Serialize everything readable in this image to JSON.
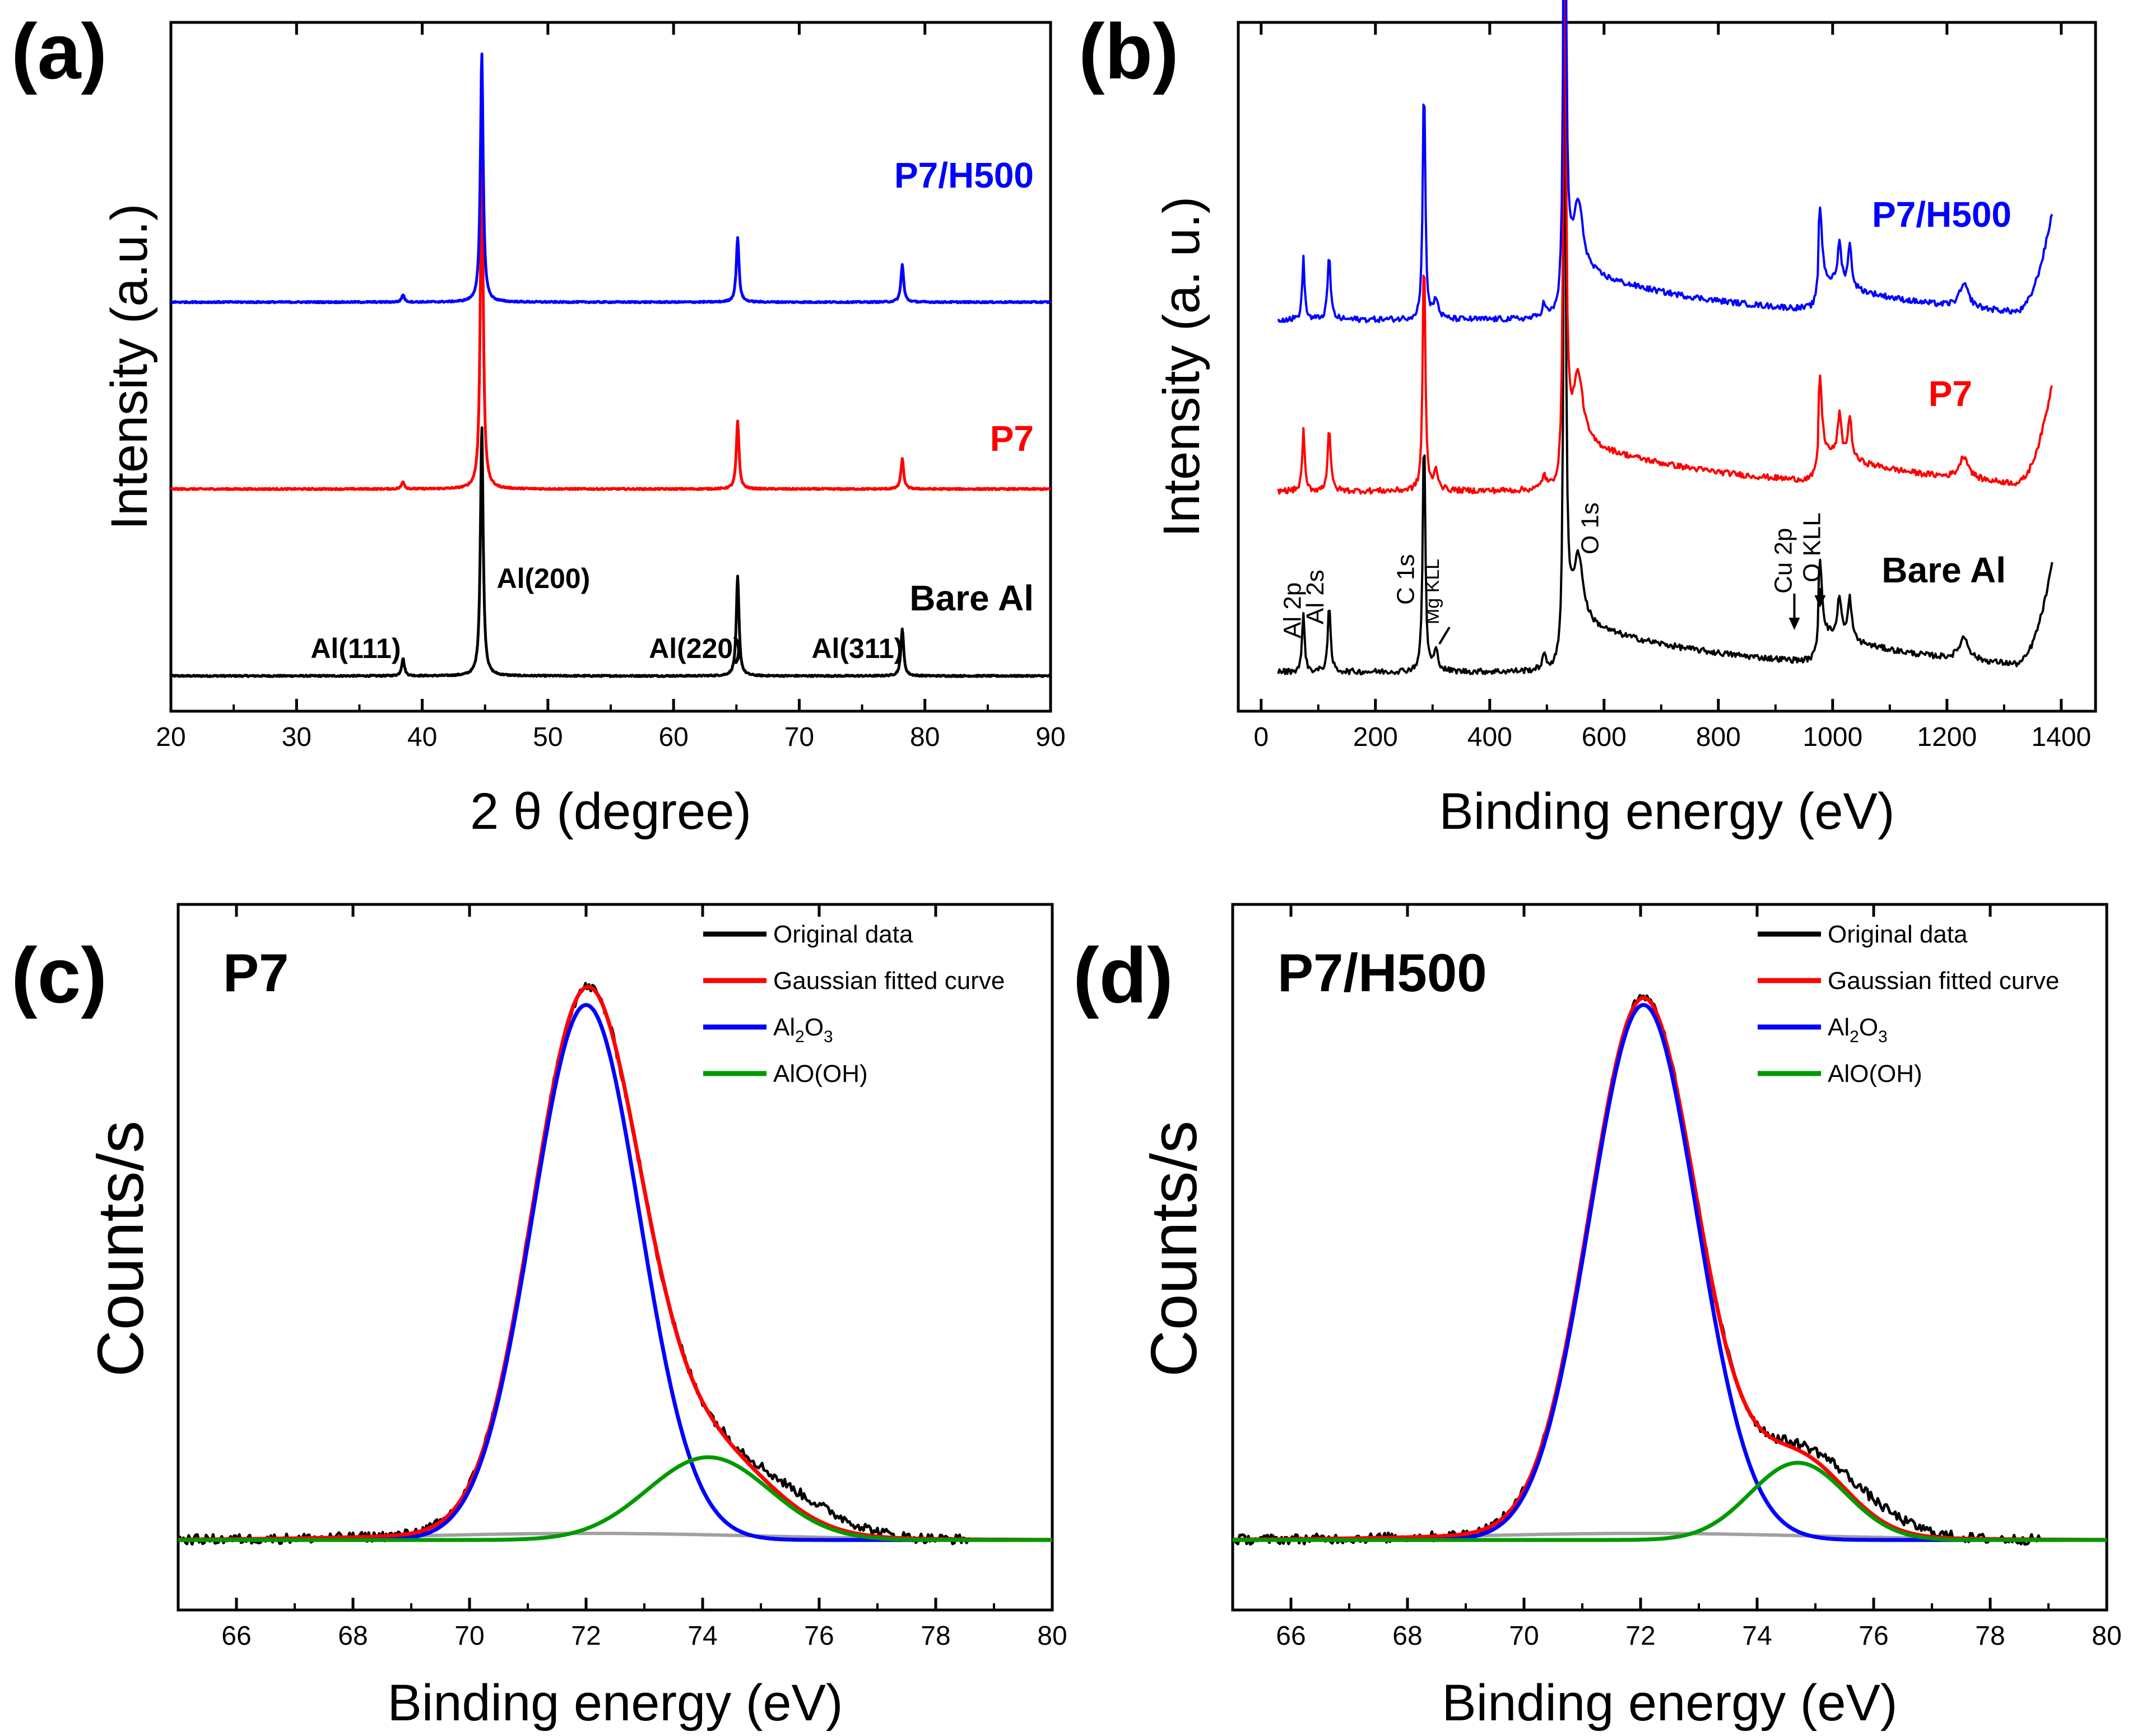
{
  "chart_data": [
    {
      "panel": "(a)",
      "type": "line",
      "xlabel_prefix": "2",
      "xlabel_symbol": "θ",
      "xlabel_suffix": "(degree)",
      "ylabel": "Intensity (a.u.)",
      "xlim": [
        20,
        90
      ],
      "xticks": [
        20,
        30,
        40,
        50,
        60,
        70,
        80,
        90
      ],
      "series": [
        {
          "name": "Bare Al",
          "color": "#000000",
          "baseline": 0.0,
          "peaks": [
            {
              "x": 38.47,
              "h": 0.07
            },
            {
              "x": 44.74,
              "h": 1.0
            },
            {
              "x": 65.1,
              "h": 0.4
            },
            {
              "x": 78.2,
              "h": 0.19
            }
          ]
        },
        {
          "name": "P7",
          "color": "#ff0000",
          "baseline": 0.75,
          "peaks": [
            {
              "x": 38.47,
              "h": 0.03
            },
            {
              "x": 44.74,
              "h": 1.4
            },
            {
              "x": 65.1,
              "h": 0.27
            },
            {
              "x": 78.2,
              "h": 0.12
            }
          ]
        },
        {
          "name": "P7/H500",
          "color": "#0000ff",
          "baseline": 1.5,
          "peaks": [
            {
              "x": 38.47,
              "h": 0.03
            },
            {
              "x": 44.74,
              "h": 1.0
            },
            {
              "x": 65.1,
              "h": 0.26
            },
            {
              "x": 78.2,
              "h": 0.15
            }
          ]
        }
      ],
      "peak_labels": [
        {
          "text": "Al(111)",
          "x": 38.5
        },
        {
          "text": "Al(200)",
          "x": 44.74
        },
        {
          "text": "Al(220)",
          "x": 65.1
        },
        {
          "text": "Al(311)",
          "x": 78.2
        }
      ]
    },
    {
      "panel": "(b)",
      "type": "line",
      "xlabel": "Binding energy (eV)",
      "ylabel": "Intensity (a. u.)",
      "xlim": [
        -40,
        1460
      ],
      "xticks": [
        0,
        200,
        400,
        600,
        800,
        1000,
        1200,
        1400
      ],
      "series": [
        {
          "name": "Bare Al",
          "color": "#000000",
          "baseline": 0.0
        },
        {
          "name": "P7",
          "color": "#ff0000",
          "baseline": 0.95
        },
        {
          "name": "P7/H500",
          "color": "#0000ff",
          "baseline": 1.85
        }
      ],
      "peaks": [
        {
          "name": "Al 2p",
          "x": 74
        },
        {
          "name": "Al 2s",
          "x": 119
        },
        {
          "name": "C 1s",
          "x": 285
        },
        {
          "name": "Mg KLL",
          "x": 306
        },
        {
          "name": "O 1s",
          "x": 531
        },
        {
          "name": "Cu 2p",
          "x": 933
        },
        {
          "name": "O KLL",
          "x": 978
        }
      ]
    },
    {
      "panel": "(c)",
      "title": "P7",
      "type": "line",
      "xlabel": "Binding energy (eV)",
      "ylabel": "Counts/s",
      "xlim": [
        65,
        80
      ],
      "xticks": [
        66,
        68,
        70,
        72,
        74,
        76,
        78,
        80
      ],
      "legend": [
        "Original data",
        "Gaussian fitted curve",
        "Al2O3",
        "AlO(OH)"
      ],
      "components": [
        {
          "name": "Al2O3",
          "center": 72.0,
          "sigma": 0.92,
          "height": 0.97
        },
        {
          "name": "AlO(OH)",
          "center": 74.1,
          "sigma": 1.05,
          "height": 0.15
        }
      ]
    },
    {
      "panel": "(d)",
      "title": "P7/H500",
      "type": "line",
      "xlabel": "Binding energy (eV)",
      "ylabel": "Counts/s",
      "xlim": [
        65,
        80
      ],
      "xticks": [
        66,
        68,
        70,
        72,
        74,
        76,
        78,
        80
      ],
      "legend": [
        "Original data",
        "Gaussian fitted curve",
        "Al2O3",
        "AlO(OH)"
      ],
      "components": [
        {
          "name": "Al2O3",
          "center": 72.05,
          "sigma": 0.92,
          "height": 0.97
        },
        {
          "name": "AlO(OH)",
          "center": 74.7,
          "sigma": 0.82,
          "height": 0.14
        }
      ]
    }
  ],
  "panels": {
    "a": {
      "label": "(a)"
    },
    "b": {
      "label": "(b)"
    },
    "c": {
      "label": "(c)"
    },
    "d": {
      "label": "(d)"
    }
  },
  "legend": {
    "original": "Original data",
    "fitted": "Gaussian fitted curve",
    "al2o3_main": "Al",
    "al2o3_sub1": "2",
    "al2o3_mid": "O",
    "al2o3_sub2": "3",
    "aloh": "AlO(OH)"
  },
  "colors": {
    "bare": "#000000",
    "p7": "#ff0000",
    "h500": "#0000ff",
    "fit": "#ff0000",
    "al2o3": "#0000ff",
    "aloh": "#009900",
    "background": "#a0a0a0"
  }
}
